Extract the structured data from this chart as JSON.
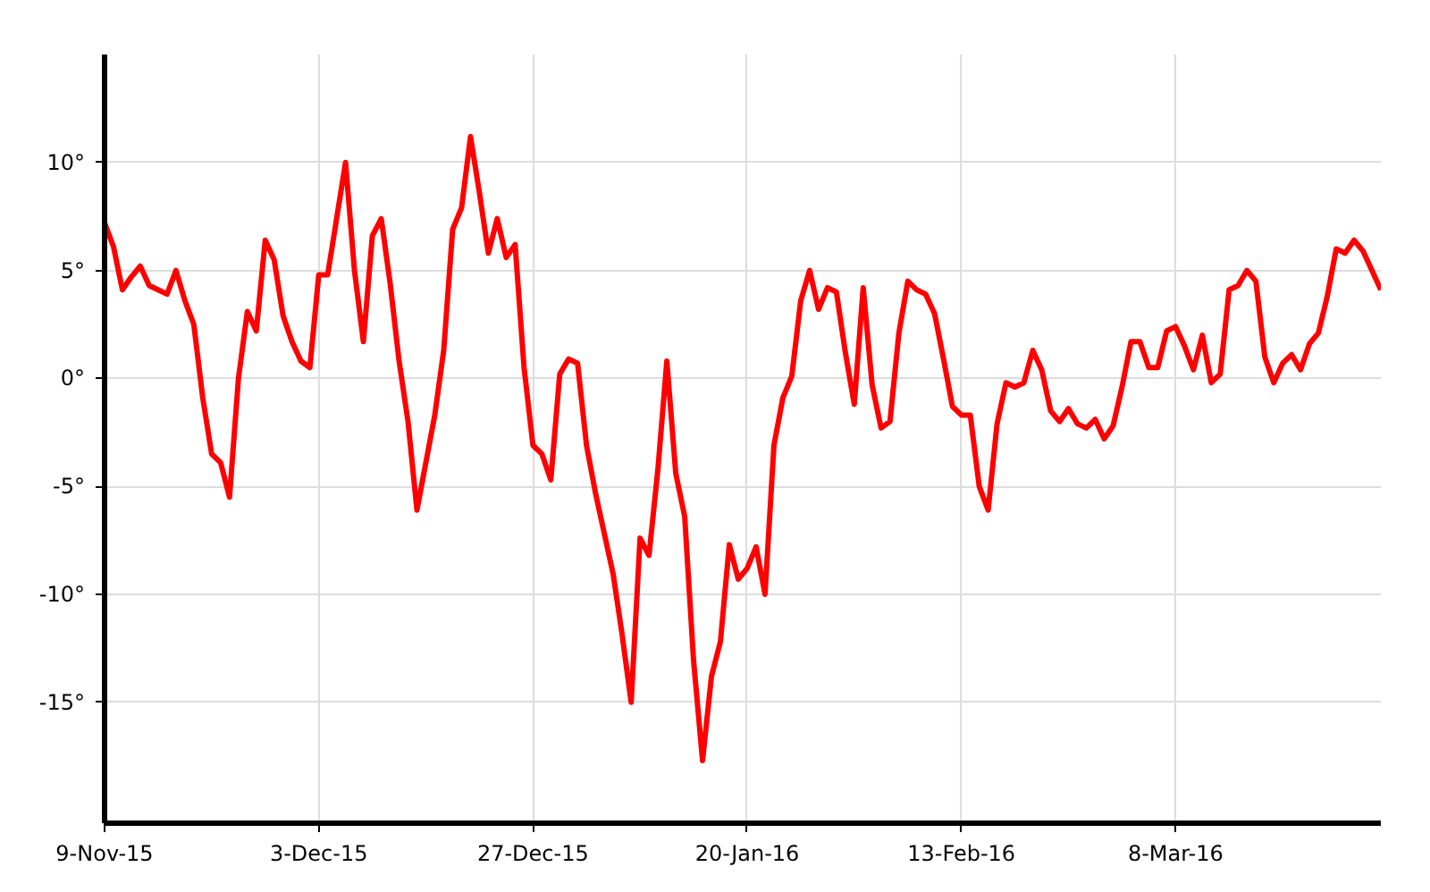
{
  "chart_data": {
    "type": "line",
    "x": [
      "2015-11-09",
      "2015-11-10",
      "2015-11-11",
      "2015-11-12",
      "2015-11-13",
      "2015-11-14",
      "2015-11-15",
      "2015-11-16",
      "2015-11-17",
      "2015-11-18",
      "2015-11-19",
      "2015-11-20",
      "2015-11-21",
      "2015-11-22",
      "2015-11-23",
      "2015-11-24",
      "2015-11-25",
      "2015-11-26",
      "2015-11-27",
      "2015-11-28",
      "2015-11-29",
      "2015-11-30",
      "2015-12-01",
      "2015-12-02",
      "2015-12-03",
      "2015-12-04",
      "2015-12-05",
      "2015-12-06",
      "2015-12-07",
      "2015-12-08",
      "2015-12-09",
      "2015-12-10",
      "2015-12-11",
      "2015-12-12",
      "2015-12-13",
      "2015-12-14",
      "2015-12-15",
      "2015-12-16",
      "2015-12-17",
      "2015-12-18",
      "2015-12-19",
      "2015-12-20",
      "2015-12-21",
      "2015-12-22",
      "2015-12-23",
      "2015-12-24",
      "2015-12-25",
      "2015-12-26",
      "2015-12-27",
      "2015-12-28",
      "2015-12-29",
      "2015-12-30",
      "2015-12-31",
      "2016-01-01",
      "2016-01-02",
      "2016-01-03",
      "2016-01-04",
      "2016-01-05",
      "2016-01-06",
      "2016-01-07",
      "2016-01-08",
      "2016-01-09",
      "2016-01-10",
      "2016-01-11",
      "2016-01-12",
      "2016-01-13",
      "2016-01-14",
      "2016-01-15",
      "2016-01-16",
      "2016-01-17",
      "2016-01-18",
      "2016-01-19",
      "2016-01-20",
      "2016-01-21",
      "2016-01-22",
      "2016-01-23",
      "2016-01-24",
      "2016-01-25",
      "2016-01-26",
      "2016-01-27",
      "2016-01-28",
      "2016-01-29",
      "2016-01-30",
      "2016-01-31",
      "2016-02-01",
      "2016-02-02",
      "2016-02-03",
      "2016-02-04",
      "2016-02-05",
      "2016-02-06",
      "2016-02-07",
      "2016-02-08",
      "2016-02-09",
      "2016-02-10",
      "2016-02-11",
      "2016-02-12",
      "2016-02-13",
      "2016-02-14",
      "2016-02-15",
      "2016-02-16",
      "2016-02-17",
      "2016-02-18",
      "2016-02-19",
      "2016-02-20",
      "2016-02-21",
      "2016-02-22",
      "2016-02-23",
      "2016-02-24",
      "2016-02-25",
      "2016-02-26",
      "2016-02-27",
      "2016-02-28",
      "2016-02-29",
      "2016-03-01",
      "2016-03-02",
      "2016-03-03",
      "2016-03-04",
      "2016-03-05",
      "2016-03-06",
      "2016-03-07",
      "2016-03-08",
      "2016-03-09",
      "2016-03-10",
      "2016-03-11",
      "2016-03-12",
      "2016-03-13",
      "2016-03-14",
      "2016-03-15",
      "2016-03-16",
      "2016-03-17",
      "2016-03-18",
      "2016-03-19",
      "2016-03-20",
      "2016-03-21",
      "2016-03-22",
      "2016-03-23",
      "2016-03-24",
      "2016-03-25",
      "2016-03-26",
      "2016-03-27",
      "2016-03-28",
      "2016-03-29",
      "2016-03-30",
      "2016-03-31"
    ],
    "series": [
      {
        "color": "#ff0000",
        "values": [
          7.2,
          6.1,
          4.1,
          4.7,
          5.2,
          4.3,
          4.1,
          3.9,
          5.0,
          3.6,
          2.5,
          -0.9,
          -3.5,
          -3.9,
          -5.5,
          0,
          3.1,
          2.2,
          6.4,
          5.5,
          2.9,
          1.7,
          0.8,
          0.5,
          4.8,
          4.8,
          7.4,
          10,
          5,
          1.7,
          6.6,
          7.4,
          4.4,
          0.8,
          -2.0,
          -6.1,
          -3.9,
          -1.7,
          1.3,
          6.9,
          7.9,
          11.2,
          8.6,
          5.8,
          7.4,
          5.6,
          6.2,
          0.5,
          -3.1,
          -3.5,
          -4.7,
          0.2,
          0.9,
          0.7,
          -3.1,
          -5.3,
          -7.2,
          -9.1,
          -11.9,
          -15,
          -7.4,
          -8.2,
          -4.2,
          0.8,
          -4.4,
          -6.4,
          -13.1,
          -17.7,
          -13.8,
          -12.2,
          -7.7,
          -9.3,
          -8.8,
          -7.8,
          -10,
          -3.1,
          -0.9,
          0.1,
          3.6,
          5.0,
          3.2,
          4.2,
          4.0,
          1.2,
          -1.2,
          4.2,
          -0.3,
          -2.3,
          -2.0,
          2.1,
          4.5,
          4.1,
          3.9,
          3.0,
          0.9,
          -1.3,
          -1.7,
          -1.7,
          -5.0,
          -6.1,
          -2.1,
          -0.2,
          -0.4,
          -0.2,
          1.3,
          0.4,
          -1.5,
          -2.0,
          -1.4,
          -2.1,
          -2.3,
          -1.9,
          -2.8,
          -2.2,
          -0.4,
          1.7,
          1.7,
          0.5,
          0.5,
          2.2,
          2.4,
          1.5,
          0.4,
          2.0,
          -0.2,
          0.2,
          4.1,
          4.3,
          5.0,
          4.5,
          1.0,
          -0.2,
          0.7,
          1.1,
          0.4,
          1.6,
          2.1,
          3.8,
          6.0,
          5.8,
          6.4,
          5.9,
          5.0,
          4.1
        ]
      }
    ],
    "xlim": [
      "2015-11-09",
      "2016-03-31"
    ],
    "xticks": [
      {
        "value": "2015-11-09",
        "label": "9-Nov-15"
      },
      {
        "value": "2015-12-03",
        "label": "3-Dec-15"
      },
      {
        "value": "2015-12-27",
        "label": "27-Dec-15"
      },
      {
        "value": "2016-01-20",
        "label": "20-Jan-16"
      },
      {
        "value": "2016-02-13",
        "label": "13-Feb-16"
      },
      {
        "value": "2016-03-08",
        "label": "8-Mar-16"
      }
    ],
    "ylim": [
      -20.6,
      15
    ],
    "yticks": [
      {
        "value": -15,
        "label": "-15°"
      },
      {
        "value": -10,
        "label": "-10°"
      },
      {
        "value": -5,
        "label": "-5°"
      },
      {
        "value": 0,
        "label": "0°"
      },
      {
        "value": 5,
        "label": "5°"
      },
      {
        "value": 10,
        "label": "10°"
      }
    ],
    "grid": true,
    "marker": "none",
    "line_style": "solid"
  }
}
